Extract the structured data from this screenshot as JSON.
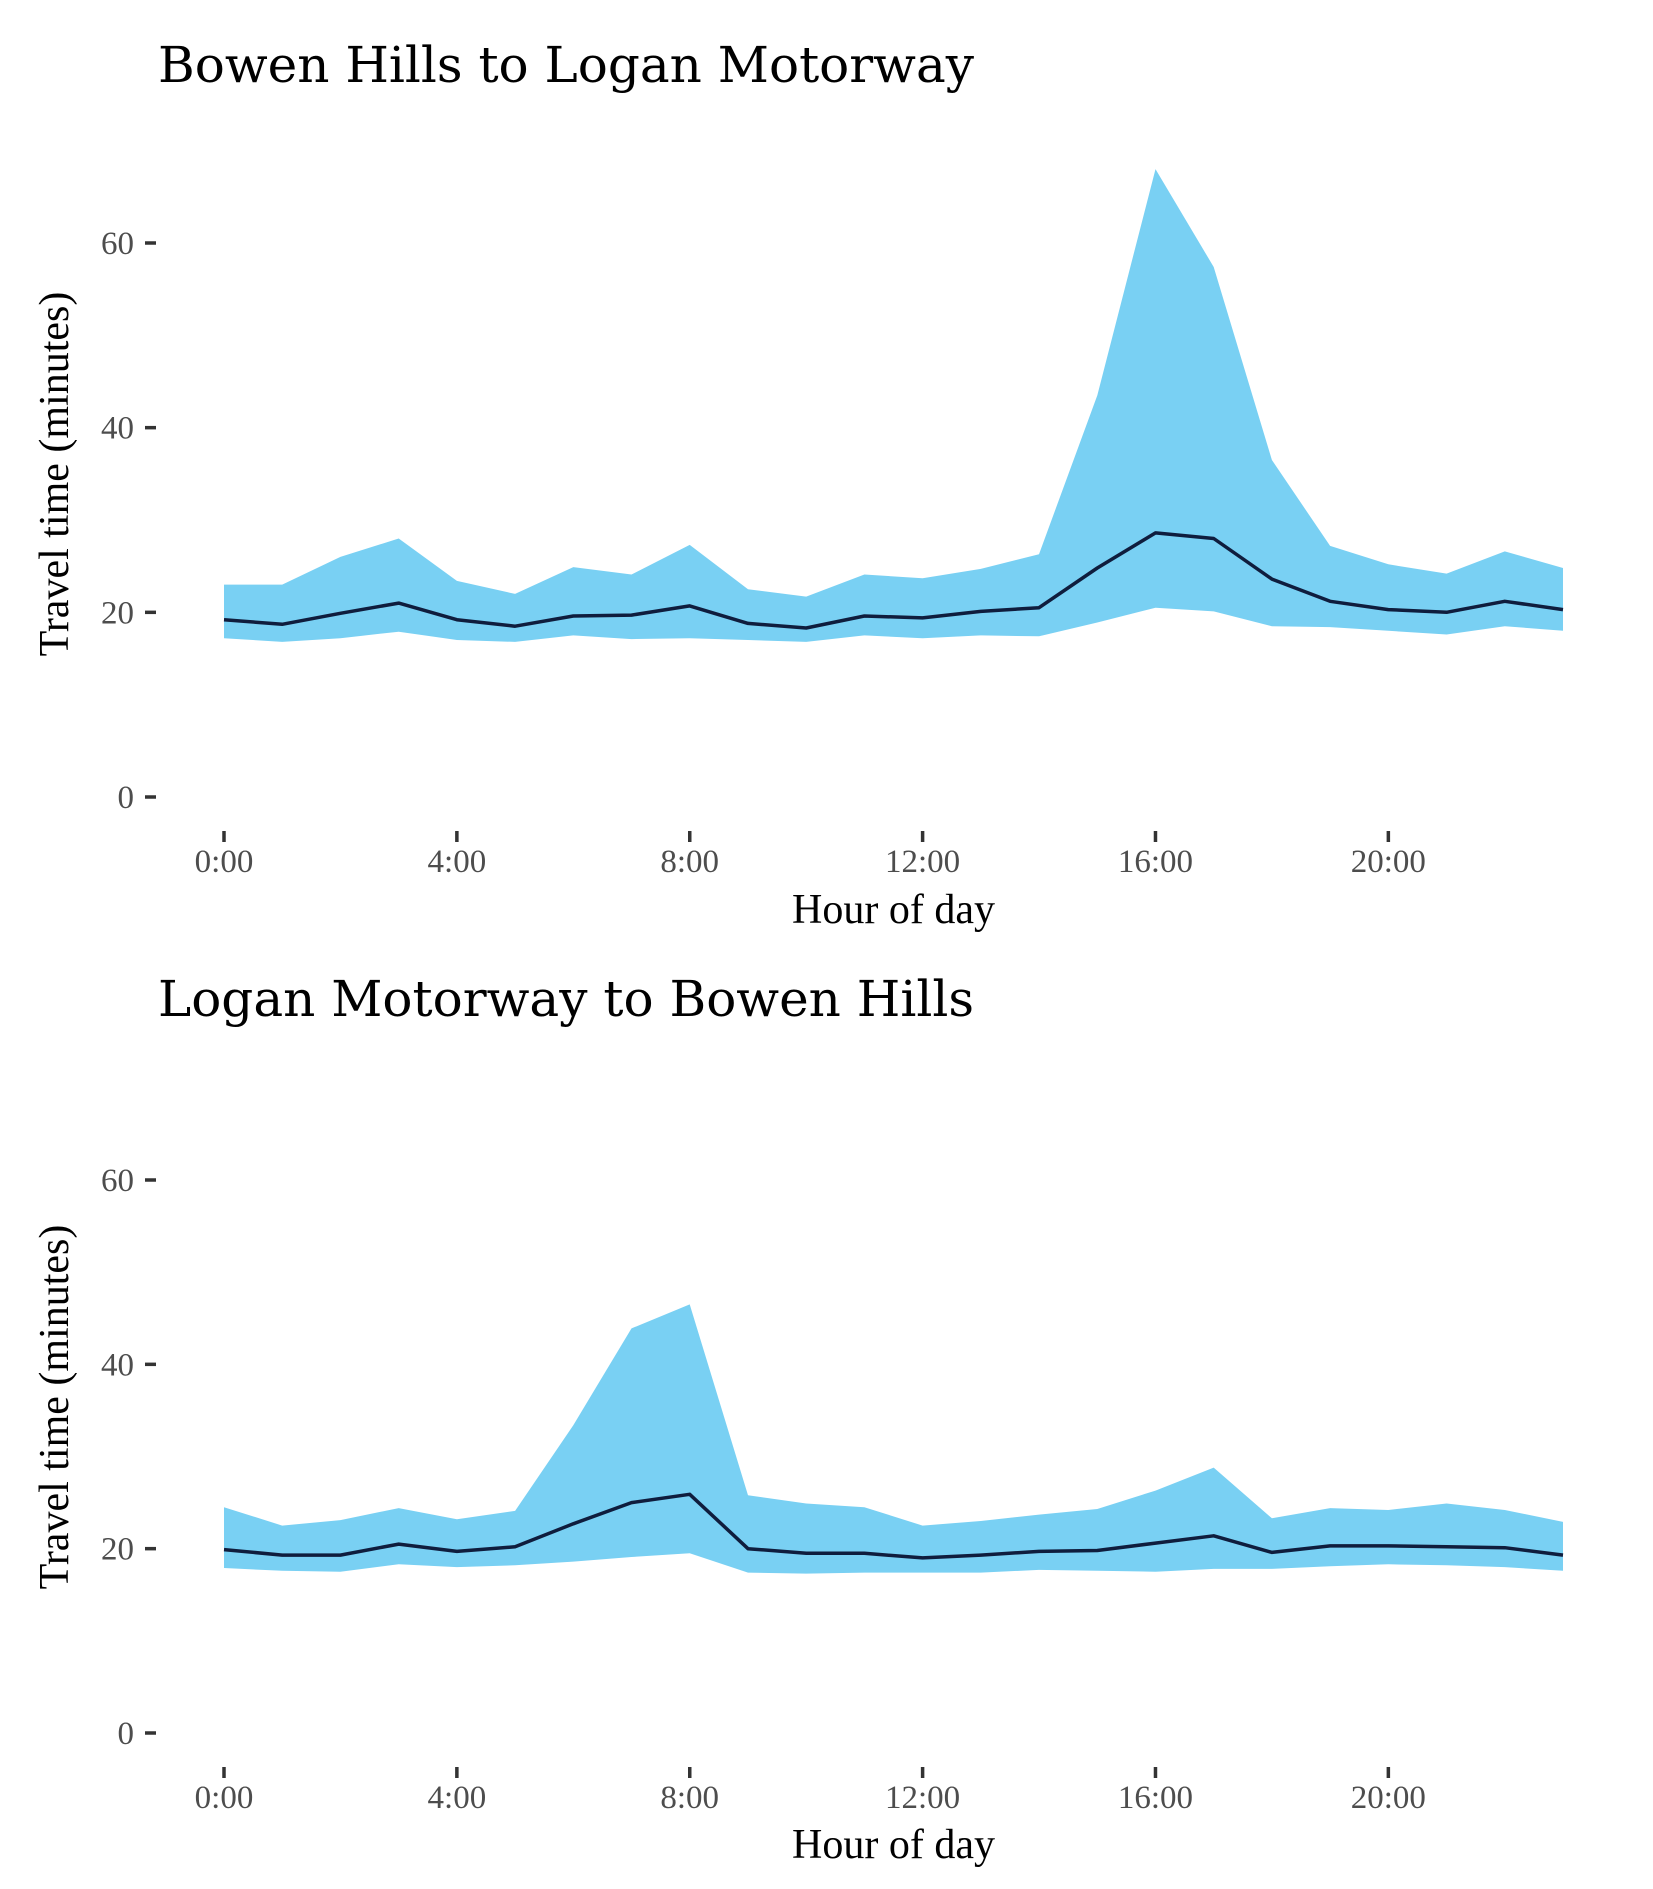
{
  "colors": {
    "band": "#79d0f3",
    "line": "#0f1d3d",
    "background": "#ffffff"
  },
  "chart_data": [
    {
      "type": "area",
      "title": "Bowen Hills to Logan Motorway",
      "xlabel": "Hour of day",
      "ylabel": "Travel time (minutes)",
      "xlim": [
        0,
        23
      ],
      "ylim": [
        0,
        70
      ],
      "x_ticks": [
        0,
        4,
        8,
        12,
        16,
        20
      ],
      "x_tick_labels": [
        "0:00",
        "4:00",
        "8:00",
        "12:00",
        "16:00",
        "20:00"
      ],
      "y_ticks": [
        0,
        20,
        40,
        60
      ],
      "y_tick_labels": [
        "0",
        "20",
        "40",
        "60"
      ],
      "grid": false,
      "x": [
        0,
        1,
        2,
        3,
        4,
        5,
        6,
        7,
        8,
        9,
        10,
        11,
        12,
        13,
        14,
        15,
        16,
        17,
        18,
        19,
        20,
        21,
        22,
        23
      ],
      "series": [
        {
          "role": "upper",
          "values": [
            23.0,
            23.0,
            26.0,
            28.0,
            23.4,
            22.0,
            24.9,
            24.1,
            27.3,
            22.5,
            21.7,
            24.1,
            23.7,
            24.7,
            26.3,
            43.5,
            68.0,
            57.4,
            36.5,
            27.2,
            25.2,
            24.2,
            26.6,
            24.8
          ]
        },
        {
          "role": "median",
          "values": [
            19.2,
            18.7,
            19.9,
            21.0,
            19.2,
            18.5,
            19.6,
            19.7,
            20.7,
            18.8,
            18.3,
            19.6,
            19.4,
            20.1,
            20.5,
            24.8,
            28.6,
            28.0,
            23.6,
            21.2,
            20.3,
            20.0,
            21.2,
            20.3
          ]
        },
        {
          "role": "lower",
          "values": [
            17.2,
            16.8,
            17.2,
            17.9,
            17.0,
            16.8,
            17.5,
            17.1,
            17.2,
            17.0,
            16.8,
            17.5,
            17.2,
            17.5,
            17.4,
            18.9,
            20.5,
            20.1,
            18.5,
            18.4,
            18.0,
            17.6,
            18.5,
            18.0
          ]
        }
      ]
    },
    {
      "type": "area",
      "title": "Logan Motorway to Bowen Hills",
      "xlabel": "Hour of day",
      "ylabel": "Travel time (minutes)",
      "xlim": [
        0,
        23
      ],
      "ylim": [
        0,
        70
      ],
      "x_ticks": [
        0,
        4,
        8,
        12,
        16,
        20
      ],
      "x_tick_labels": [
        "0:00",
        "4:00",
        "8:00",
        "12:00",
        "16:00",
        "20:00"
      ],
      "y_ticks": [
        0,
        20,
        40,
        60
      ],
      "y_tick_labels": [
        "0",
        "20",
        "40",
        "60"
      ],
      "grid": false,
      "x": [
        0,
        1,
        2,
        3,
        4,
        5,
        6,
        7,
        8,
        9,
        10,
        11,
        12,
        13,
        14,
        15,
        16,
        17,
        18,
        19,
        20,
        21,
        22,
        23
      ],
      "series": [
        {
          "role": "upper",
          "values": [
            24.5,
            22.5,
            23.1,
            24.4,
            23.2,
            24.1,
            33.4,
            43.9,
            46.5,
            25.8,
            24.9,
            24.5,
            22.5,
            23.0,
            23.7,
            24.3,
            26.3,
            28.8,
            23.3,
            24.4,
            24.2,
            24.9,
            24.2,
            22.9
          ]
        },
        {
          "role": "median",
          "values": [
            19.9,
            19.3,
            19.3,
            20.5,
            19.7,
            20.2,
            22.7,
            25.0,
            25.9,
            20.0,
            19.5,
            19.5,
            19.0,
            19.3,
            19.7,
            19.8,
            20.6,
            21.4,
            19.6,
            20.3,
            20.3,
            20.2,
            20.1,
            19.3
          ]
        },
        {
          "role": "lower",
          "values": [
            17.9,
            17.6,
            17.5,
            18.3,
            18.0,
            18.2,
            18.6,
            19.1,
            19.5,
            17.4,
            17.3,
            17.4,
            17.4,
            17.4,
            17.7,
            17.6,
            17.5,
            17.8,
            17.8,
            18.1,
            18.3,
            18.2,
            18.0,
            17.6
          ]
        }
      ]
    }
  ]
}
